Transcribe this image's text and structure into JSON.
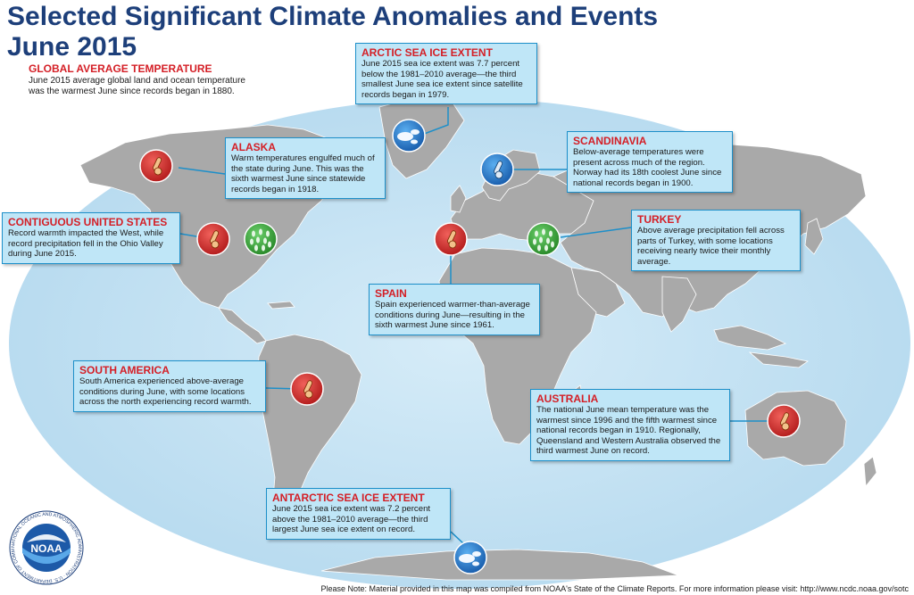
{
  "title_line1": "Selected Significant Climate Anomalies and Events",
  "title_line2": "June 2015",
  "global": {
    "heading": "GLOBAL AVERAGE TEMPERATURE",
    "text": "June 2015 average global land and ocean temperature was the warmest June since records began in 1880."
  },
  "boxes": {
    "arctic": {
      "heading": "ARCTIC SEA ICE EXTENT",
      "text": "June 2015 sea ice extent was 7.7 percent below the 1981–2010 average—the third smallest June sea ice extent since satellite records began in 1979."
    },
    "alaska": {
      "heading": "ALASKA",
      "text": "Warm temperatures engulfed much of the state during June. This was the sixth warmest June since statewide records began in 1918."
    },
    "scandinavia": {
      "heading": "SCANDINAVIA",
      "text": "Below-average temperatures were present across much of the region. Norway had its 18th coolest June since national records began in 1900."
    },
    "contiguous_us": {
      "heading": "CONTIGUOUS UNITED STATES",
      "text": "Record warmth impacted the West, while record precipitation fell in the Ohio Valley during June 2015."
    },
    "turkey": {
      "heading": "TURKEY",
      "text": "Above average precipitation fell across parts of Turkey, with some locations receiving nearly twice their monthly average."
    },
    "spain": {
      "heading": "SPAIN",
      "text": "Spain experienced warmer-than-average conditions during June—resulting in the sixth warmest June since 1961."
    },
    "south_america": {
      "heading": "SOUTH AMERICA",
      "text": "South America experienced above-average conditions during June, with some locations across the north experiencing record warmth."
    },
    "australia": {
      "heading": "AUSTRALIA",
      "text": "The national June mean temperature was the warmest since 1996 and the fifth warmest since national records began in 1910. Regionally, Queensland and Western Australia observed the third warmest June on record."
    },
    "antarctic": {
      "heading": "ANTARCTIC SEA ICE EXTENT",
      "text": "June 2015 sea ice extent was 7.2 percent above the 1981–2010 average—the third largest June sea ice extent on record."
    }
  },
  "icons": {
    "warm": "thermometer-warm-icon",
    "cool": "thermometer-cool-icon",
    "wet": "precipitation-icon",
    "ice": "sea-ice-icon"
  },
  "colors": {
    "title": "#1d3f7a",
    "heading": "#d41f26",
    "ocean": "#c4e1f2",
    "land": "#a8a8a8",
    "box_fill": "#bfe6f7",
    "box_border": "#1d8fc9",
    "warm_icon": "#d42a2a",
    "cool_icon": "#2a7fd1",
    "wet_icon": "#3aa63a"
  },
  "logo": {
    "text": "NOAA",
    "ring_text": "NATIONAL OCEANIC AND ATMOSPHERIC ADMINISTRATION · U.S. DEPARTMENT OF COMMERCE"
  },
  "footer": "Please Note: Material provided in this map was compiled from NOAA's State of the Climate Reports. For more information please visit: http://www.ncdc.noaa.gov/sotc"
}
